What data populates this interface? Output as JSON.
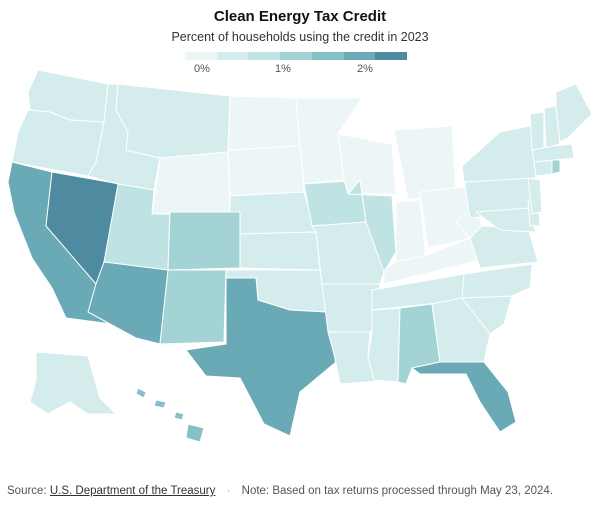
{
  "header": {
    "title": "Clean Energy Tax Credit",
    "subtitle": "Percent of households using the credit in 2023"
  },
  "legend": {
    "stops": [
      {
        "label": "0%",
        "color": "#e8f3f4"
      },
      {
        "label": "1%",
        "color": "#a9d6d8"
      },
      {
        "label": "2%",
        "color": "#5c9fb0"
      }
    ],
    "bins": [
      "#edf6f7",
      "#d5ecec",
      "#bfe2e3",
      "#a4d3d5",
      "#84c1c6",
      "#6aaab6",
      "#4f8ba0"
    ]
  },
  "footer": {
    "source_label": "Source:",
    "source_link": "U.S. Department of the Treasury",
    "separator": "·",
    "note": "Note: Based on tax returns processed through May 23, 2024."
  },
  "chart_data": {
    "type": "choropleth",
    "value_unit": "percent of households",
    "scale_ticks": [
      "0%",
      "1%",
      "2%"
    ],
    "states": {
      "NV": 2.5,
      "CA": 1.9,
      "AZ": 1.9,
      "TX": 1.8,
      "FL": 1.8,
      "HI": 1.7,
      "CO": 1.3,
      "NM": 1.2,
      "AL": 1.2,
      "RI": 1.1,
      "UT": 0.8,
      "IA": 0.8,
      "IL": 0.8,
      "OR": 0.7,
      "WA": 0.7,
      "ID": 0.7,
      "MT": 0.6,
      "MS": 0.6,
      "LA": 0.6,
      "GA": 0.6,
      "SC": 0.6,
      "NC": 0.6,
      "VA": 0.6,
      "MD": 0.6,
      "DE": 0.6,
      "NJ": 0.6,
      "PA": 0.6,
      "NY": 0.6,
      "CT": 0.6,
      "MA": 0.6,
      "VT": 0.6,
      "NH": 0.6,
      "ME": 0.6,
      "TN": 0.5,
      "OK": 0.5,
      "AR": 0.5,
      "MO": 0.5,
      "KS": 0.4,
      "NE": 0.4,
      "WY": 0.3,
      "SD": 0.3,
      "ND": 0.3,
      "MN": 0.3,
      "WI": 0.3,
      "MI": 0.3,
      "IN": 0.3,
      "OH": 0.3,
      "KY": 0.3,
      "WV": 0.3,
      "AK": 0.4
    }
  }
}
